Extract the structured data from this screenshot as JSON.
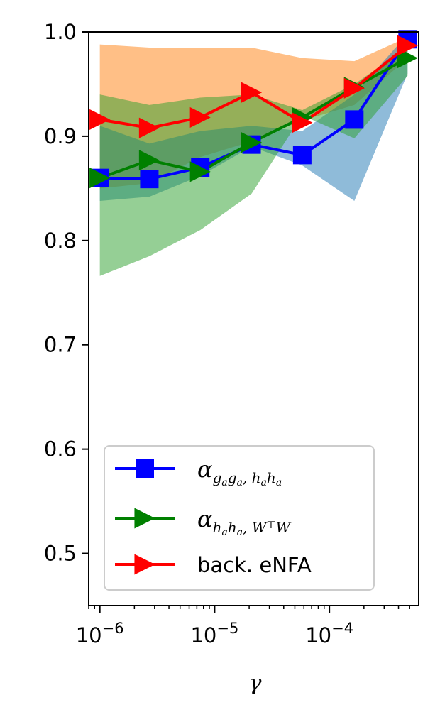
{
  "chart_data": {
    "type": "line",
    "xscale": "log",
    "x": [
      1e-06,
      2.7e-06,
      7.5e-06,
      2.1e-05,
      5.8e-05,
      0.000165,
      0.00048
    ],
    "xlim": [
      8e-07,
      0.0006
    ],
    "ylim": [
      0.45,
      1.0
    ],
    "xlabel": "γ",
    "ylabel": "",
    "title": "",
    "grid": false,
    "legend_position": "lower-center",
    "x_ticks": [
      {
        "value": 1e-06,
        "base": "10",
        "exp": "−6"
      },
      {
        "value": 1e-05,
        "base": "10",
        "exp": "−5"
      },
      {
        "value": 0.0001,
        "base": "10",
        "exp": "−4"
      }
    ],
    "y_ticks": [
      {
        "value": 0.5,
        "label": "0.5"
      },
      {
        "value": 0.6,
        "label": "0.6"
      },
      {
        "value": 0.7,
        "label": "0.7"
      },
      {
        "value": 0.8,
        "label": "0.8"
      },
      {
        "value": 0.9,
        "label": "0.9"
      },
      {
        "value": 1.0,
        "label": "1.0"
      }
    ],
    "series": [
      {
        "legend": "α_{g_a g_a, h_a h_a}",
        "color": "#0000ff",
        "band_color": "#1f77b4",
        "marker": "square",
        "values": [
          0.86,
          0.859,
          0.87,
          0.892,
          0.882,
          0.916,
          0.993
        ],
        "lower": [
          0.838,
          0.842,
          0.862,
          0.89,
          0.872,
          0.838,
          0.96
        ],
        "upper": [
          0.91,
          0.893,
          0.905,
          0.91,
          0.905,
          0.94,
          0.998
        ]
      },
      {
        "legend": "α_{h_a h_a, W⊤W}",
        "color": "#008000",
        "band_color": "#2ca02c",
        "marker": "triangle-right",
        "values": [
          0.86,
          0.877,
          0.866,
          0.894,
          0.918,
          0.947,
          0.975
        ],
        "lower": [
          0.766,
          0.785,
          0.81,
          0.845,
          0.92,
          0.898,
          0.958
        ],
        "upper": [
          0.94,
          0.93,
          0.937,
          0.94,
          0.925,
          0.95,
          0.985
        ]
      },
      {
        "legend": "back. eNFA",
        "color": "#ff0000",
        "band_color": "#ff7f0e",
        "marker": "triangle-right",
        "values": [
          0.916,
          0.908,
          0.918,
          0.942,
          0.913,
          0.946,
          0.987
        ],
        "lower": [
          0.85,
          0.855,
          0.88,
          0.895,
          0.915,
          0.93,
          0.975
        ],
        "upper": [
          0.988,
          0.985,
          0.985,
          0.985,
          0.975,
          0.972,
          0.995
        ]
      }
    ]
  }
}
